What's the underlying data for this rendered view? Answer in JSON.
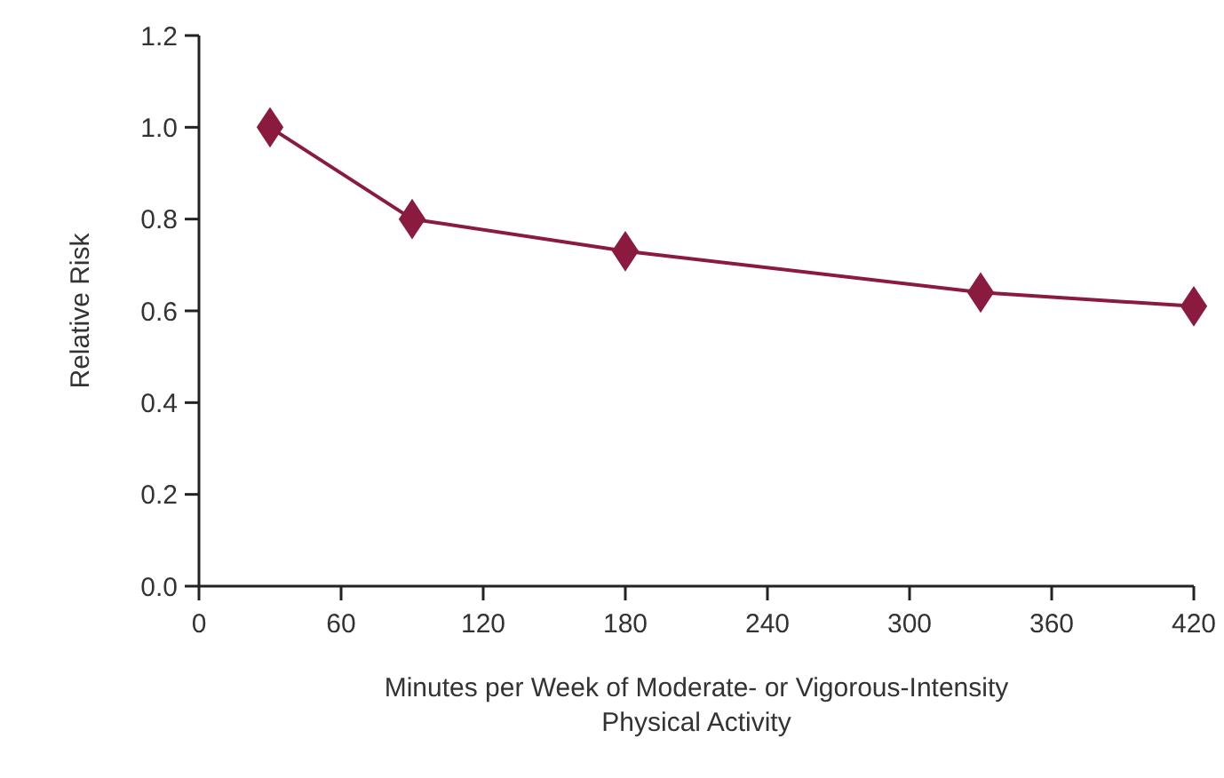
{
  "chart_data": {
    "type": "line",
    "xlabel": "Minutes per Week of Moderate- or Vigorous-Intensity Physical Activity",
    "ylabel": "Relative Risk",
    "x": [
      30,
      90,
      180,
      330,
      420
    ],
    "series": [
      {
        "color": "#8b1a3f",
        "values": [
          1.0,
          0.8,
          0.73,
          0.64,
          0.61
        ]
      }
    ],
    "xlim": [
      0,
      420
    ],
    "xticks": [
      0,
      60,
      120,
      180,
      240,
      300,
      360,
      420
    ],
    "ylim": [
      0,
      1.2
    ],
    "yticks": [
      {
        "value": 0,
        "label": "0.0"
      },
      {
        "value": 0.2,
        "label": "0.2"
      },
      {
        "value": 0.4,
        "label": "0.4"
      },
      {
        "value": 0.6,
        "label": "0.6"
      },
      {
        "value": 0.8,
        "label": "0.8"
      },
      {
        "value": 1,
        "label": "1.0"
      },
      {
        "value": 1.2,
        "label": "1.2"
      }
    ],
    "marker": "diamond",
    "line_style": "solid",
    "grid": false
  }
}
